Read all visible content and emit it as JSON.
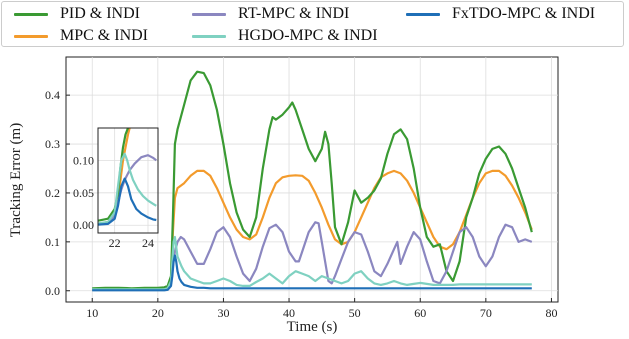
{
  "chart_data": {
    "type": "line",
    "title": "",
    "xlabel": "Time (s)",
    "ylabel": "Tracking Error (m)",
    "xlim": [
      6,
      81
    ],
    "ylim": [
      -0.023,
      0.478
    ],
    "xticks": [
      10,
      20,
      30,
      40,
      50,
      60,
      70,
      80
    ],
    "yticks": [
      0.0,
      0.1,
      0.2,
      0.3,
      0.4
    ],
    "grid": true,
    "legend": "top, outside, 3 columns",
    "colors": {
      "PID & INDI": "#3a9a33",
      "MPC & INDI": "#f39b2c",
      "RT-MPC & INDI": "#8b87c0",
      "HGDO-MPC & INDI": "#7fd1c1",
      "FxTDO-MPC & INDI": "#1f6fb7"
    },
    "series": [
      {
        "name": "PID & INDI",
        "x": [
          10,
          12,
          14,
          16,
          18,
          20,
          21,
          21.5,
          22,
          22.3,
          22.6,
          23,
          24,
          25,
          26,
          27,
          28,
          29,
          30,
          31,
          32,
          33,
          34,
          35,
          36,
          37,
          37.5,
          38,
          39,
          40,
          40.5,
          41,
          42,
          43,
          44,
          45,
          45.5,
          46,
          46.5,
          47,
          48,
          49,
          50,
          51,
          52,
          53,
          54,
          55,
          56,
          57,
          58,
          59,
          60,
          61,
          62,
          63,
          64,
          65,
          66,
          67,
          68,
          69,
          70,
          71,
          72,
          73,
          74,
          75,
          76,
          77
        ],
        "y": [
          0.005,
          0.006,
          0.006,
          0.005,
          0.006,
          0.006,
          0.007,
          0.01,
          0.03,
          0.15,
          0.3,
          0.33,
          0.38,
          0.43,
          0.448,
          0.445,
          0.42,
          0.37,
          0.3,
          0.22,
          0.16,
          0.125,
          0.11,
          0.15,
          0.25,
          0.33,
          0.355,
          0.35,
          0.36,
          0.375,
          0.385,
          0.37,
          0.33,
          0.29,
          0.265,
          0.29,
          0.325,
          0.3,
          0.22,
          0.13,
          0.095,
          0.14,
          0.205,
          0.18,
          0.19,
          0.205,
          0.23,
          0.28,
          0.32,
          0.33,
          0.31,
          0.25,
          0.17,
          0.11,
          0.09,
          0.095,
          0.04,
          0.02,
          0.06,
          0.15,
          0.19,
          0.24,
          0.27,
          0.29,
          0.295,
          0.28,
          0.25,
          0.21,
          0.17,
          0.12
        ]
      },
      {
        "name": "MPC & INDI",
        "x": [
          10,
          12,
          14,
          16,
          18,
          20,
          21,
          21.5,
          22,
          22.3,
          22.6,
          23,
          24,
          25,
          26,
          27,
          28,
          29,
          30,
          31,
          32,
          33,
          34,
          35,
          36,
          37,
          38,
          39,
          40,
          41,
          42,
          43,
          44,
          45,
          46,
          47,
          48,
          49,
          50,
          51,
          52,
          53,
          54,
          55,
          56,
          57,
          58,
          59,
          60,
          61,
          62,
          63,
          64,
          65,
          66,
          67,
          68,
          69,
          70,
          71,
          72,
          73,
          74,
          75,
          76,
          77
        ],
        "y": [
          0.002,
          0.002,
          0.002,
          0.002,
          0.002,
          0.002,
          0.003,
          0.005,
          0.02,
          0.12,
          0.19,
          0.21,
          0.22,
          0.235,
          0.245,
          0.245,
          0.235,
          0.21,
          0.18,
          0.15,
          0.125,
          0.11,
          0.105,
          0.115,
          0.15,
          0.19,
          0.22,
          0.232,
          0.235,
          0.236,
          0.235,
          0.225,
          0.2,
          0.17,
          0.135,
          0.105,
          0.095,
          0.1,
          0.12,
          0.15,
          0.18,
          0.21,
          0.232,
          0.24,
          0.245,
          0.24,
          0.225,
          0.2,
          0.17,
          0.14,
          0.11,
          0.09,
          0.085,
          0.095,
          0.12,
          0.155,
          0.19,
          0.22,
          0.24,
          0.245,
          0.245,
          0.235,
          0.215,
          0.19,
          0.16,
          0.125
        ]
      },
      {
        "name": "RT-MPC & INDI",
        "x": [
          10,
          12,
          14,
          16,
          18,
          20,
          21,
          21.5,
          22,
          22.3,
          22.6,
          23,
          23.5,
          24,
          25,
          26,
          27,
          28,
          29,
          30,
          31,
          32,
          33,
          34,
          35,
          36,
          37,
          38,
          39,
          40,
          41,
          41.5,
          42,
          43,
          44,
          44.5,
          45,
          46,
          46.5,
          47,
          48,
          49,
          50,
          51,
          52,
          53,
          54,
          55,
          56,
          56.5,
          57,
          58,
          59,
          60,
          61,
          62,
          63,
          64,
          65,
          66,
          67,
          68,
          69,
          70,
          71,
          72,
          73,
          74,
          75,
          76,
          77
        ],
        "y": [
          0.002,
          0.002,
          0.002,
          0.002,
          0.002,
          0.002,
          0.003,
          0.005,
          0.015,
          0.05,
          0.08,
          0.1,
          0.11,
          0.105,
          0.08,
          0.055,
          0.055,
          0.085,
          0.12,
          0.13,
          0.11,
          0.07,
          0.035,
          0.02,
          0.045,
          0.09,
          0.128,
          0.135,
          0.12,
          0.08,
          0.06,
          0.06,
          0.08,
          0.12,
          0.14,
          0.138,
          0.1,
          0.02,
          0.015,
          0.03,
          0.065,
          0.1,
          0.12,
          0.115,
          0.08,
          0.04,
          0.03,
          0.055,
          0.085,
          0.1,
          0.055,
          0.09,
          0.12,
          0.105,
          0.06,
          0.02,
          0.015,
          0.04,
          0.08,
          0.12,
          0.13,
          0.11,
          0.07,
          0.05,
          0.07,
          0.11,
          0.135,
          0.13,
          0.1,
          0.105,
          0.1
        ]
      },
      {
        "name": "HGDO-MPC & INDI",
        "x": [
          10,
          12,
          14,
          16,
          18,
          20,
          21,
          21.5,
          22,
          22.2,
          22.4,
          22.6,
          22.8,
          23,
          23.3,
          23.6,
          24,
          25,
          26,
          27,
          28,
          29,
          30,
          31,
          32,
          33,
          34,
          35,
          36,
          37,
          38,
          39,
          40,
          41,
          42,
          43,
          44,
          45,
          46,
          47,
          48,
          49,
          50,
          51,
          52,
          53,
          54,
          55,
          56,
          57,
          58,
          59,
          60,
          61,
          62,
          63,
          64,
          65,
          66,
          67,
          68,
          69,
          70,
          71,
          72,
          73,
          74,
          75,
          76,
          77
        ],
        "y": [
          0.003,
          0.003,
          0.003,
          0.003,
          0.003,
          0.003,
          0.003,
          0.005,
          0.02,
          0.06,
          0.1,
          0.11,
          0.09,
          0.07,
          0.06,
          0.05,
          0.04,
          0.025,
          0.02,
          0.015,
          0.015,
          0.02,
          0.025,
          0.02,
          0.012,
          0.01,
          0.01,
          0.018,
          0.025,
          0.035,
          0.025,
          0.015,
          0.03,
          0.04,
          0.035,
          0.03,
          0.02,
          0.03,
          0.025,
          0.02,
          0.015,
          0.02,
          0.035,
          0.04,
          0.025,
          0.015,
          0.012,
          0.015,
          0.02,
          0.015,
          0.012,
          0.014,
          0.016,
          0.014,
          0.012,
          0.012,
          0.012,
          0.012,
          0.013,
          0.013,
          0.013,
          0.013,
          0.013,
          0.013,
          0.013,
          0.013,
          0.013,
          0.013,
          0.013,
          0.013
        ]
      },
      {
        "name": "FxTDO-MPC & INDI",
        "x": [
          10,
          12,
          14,
          16,
          18,
          20,
          21,
          21.5,
          22,
          22.2,
          22.4,
          22.6,
          22.8,
          23,
          23.3,
          23.6,
          24,
          25,
          26,
          27,
          28,
          29,
          30,
          35,
          40,
          45,
          50,
          55,
          60,
          65,
          70,
          75,
          77
        ],
        "y": [
          0.001,
          0.001,
          0.001,
          0.001,
          0.001,
          0.001,
          0.001,
          0.002,
          0.01,
          0.03,
          0.06,
          0.072,
          0.06,
          0.04,
          0.025,
          0.018,
          0.012,
          0.008,
          0.006,
          0.006,
          0.005,
          0.005,
          0.005,
          0.005,
          0.005,
          0.005,
          0.005,
          0.005,
          0.005,
          0.005,
          0.005,
          0.005,
          0.005
        ]
      }
    ],
    "inset": {
      "xlim": [
        21,
        24.6
      ],
      "ylim": [
        -0.012,
        0.15
      ],
      "xticks": [
        22,
        24
      ],
      "yticks": [
        0.0,
        0.05,
        0.1
      ],
      "series": {
        "PID & INDI": {
          "x": [
            21,
            21.6,
            22,
            22.2,
            22.35,
            22.5,
            22.65,
            22.8,
            23.0
          ],
          "y": [
            0.007,
            0.01,
            0.025,
            0.05,
            0.09,
            0.12,
            0.14,
            0.15,
            0.16
          ]
        },
        "MPC & INDI": {
          "x": [
            21,
            21.6,
            22,
            22.2,
            22.35,
            22.5,
            22.65,
            22.8,
            23.0
          ],
          "y": [
            0.002,
            0.005,
            0.018,
            0.04,
            0.07,
            0.1,
            0.12,
            0.14,
            0.16
          ]
        },
        "RT-MPC & INDI": {
          "x": [
            21,
            21.6,
            22,
            22.2,
            22.4,
            22.6,
            22.9,
            23.2,
            23.6,
            24,
            24.3,
            24.5
          ],
          "y": [
            0.002,
            0.004,
            0.015,
            0.035,
            0.055,
            0.07,
            0.085,
            0.095,
            0.105,
            0.108,
            0.104,
            0.1
          ]
        },
        "HGDO-MPC & INDI": {
          "x": [
            21,
            21.6,
            22,
            22.2,
            22.4,
            22.6,
            22.75,
            22.9,
            23.1,
            23.4,
            23.7,
            24,
            24.3,
            24.5
          ],
          "y": [
            0.003,
            0.005,
            0.02,
            0.06,
            0.1,
            0.11,
            0.1,
            0.085,
            0.07,
            0.055,
            0.045,
            0.038,
            0.033,
            0.03
          ]
        },
        "FxTDO-MPC & INDI": {
          "x": [
            21,
            21.6,
            22,
            22.2,
            22.4,
            22.6,
            22.8,
            23.0,
            23.3,
            23.6,
            24,
            24.3,
            24.5
          ],
          "y": [
            0.001,
            0.002,
            0.01,
            0.03,
            0.06,
            0.072,
            0.06,
            0.04,
            0.025,
            0.018,
            0.012,
            0.009,
            0.008
          ]
        }
      }
    }
  }
}
